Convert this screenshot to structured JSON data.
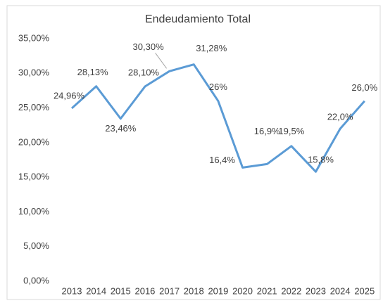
{
  "chart_data": {
    "type": "line",
    "title": "Endeudamiento Total",
    "categories": [
      "2013",
      "2014",
      "2015",
      "2016",
      "2017",
      "2018",
      "2019",
      "2020",
      "2021",
      "2022",
      "2023",
      "2024",
      "2025"
    ],
    "series": [
      {
        "name": "Endeudamiento Total",
        "color": "#5b9bd5",
        "values": [
          24.96,
          28.13,
          23.46,
          28.1,
          30.3,
          31.28,
          26,
          16.4,
          16.9,
          19.5,
          15.8,
          22.0,
          26.0
        ],
        "value_labels": [
          "24,96%",
          "28,13%",
          "23,46%",
          "28,10%",
          "30,30%",
          "31,28%",
          "26%",
          "16,4%",
          "16,9%",
          "19,5%",
          "15,8%",
          "22,0%",
          "26,0%"
        ]
      }
    ],
    "ylim": [
      0,
      35
    ],
    "yticks": [
      {
        "value": 0,
        "label": "0,00%"
      },
      {
        "value": 5,
        "label": "5,00%"
      },
      {
        "value": 10,
        "label": "10,00%"
      },
      {
        "value": 15,
        "label": "15,00%"
      },
      {
        "value": 20,
        "label": "20,00%"
      },
      {
        "value": 25,
        "label": "25,00%"
      },
      {
        "value": 30,
        "label": "30,00%"
      },
      {
        "value": 35,
        "label": "35,00%"
      }
    ],
    "grid": false
  }
}
